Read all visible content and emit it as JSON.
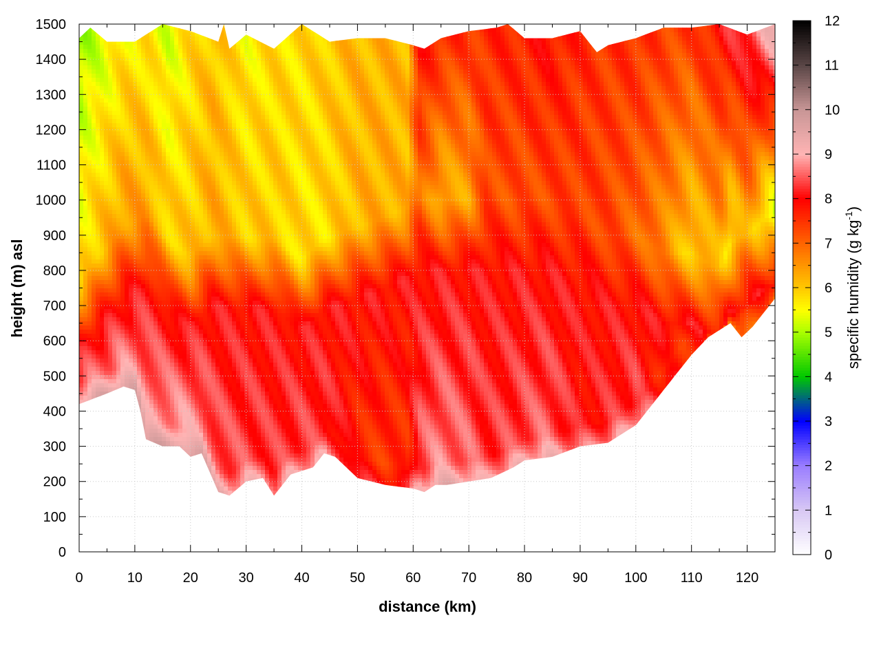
{
  "chart_data": {
    "type": "heatmap",
    "title": "",
    "xlabel": "distance (km)",
    "ylabel": "height (m) asl",
    "colorbar_label": {
      "main": "specific humidity (g kg",
      "sup": "-1",
      "close": ")"
    },
    "xlim": [
      0,
      125
    ],
    "ylim": [
      0,
      1500
    ],
    "zlim": [
      0,
      12
    ],
    "xticks": [
      0,
      10,
      20,
      30,
      40,
      50,
      60,
      70,
      80,
      90,
      100,
      110,
      120
    ],
    "yticks": [
      0,
      100,
      200,
      300,
      400,
      500,
      600,
      700,
      800,
      900,
      1000,
      1100,
      1200,
      1300,
      1400,
      1500
    ],
    "cbticks": [
      0,
      1,
      2,
      3,
      4,
      5,
      6,
      7,
      8,
      9,
      10,
      11,
      12
    ],
    "grid": true,
    "colormap": [
      {
        "v": 0,
        "c": "#ffffff"
      },
      {
        "v": 1,
        "c": "#d8c8f4"
      },
      {
        "v": 2,
        "c": "#9a7dff"
      },
      {
        "v": 3,
        "c": "#0000ff"
      },
      {
        "v": 4,
        "c": "#00c800"
      },
      {
        "v": 5,
        "c": "#aaff00"
      },
      {
        "v": 5.5,
        "c": "#ffff00"
      },
      {
        "v": 6,
        "c": "#ffc800"
      },
      {
        "v": 7,
        "c": "#ff6400"
      },
      {
        "v": 8,
        "c": "#ff0000"
      },
      {
        "v": 9,
        "c": "#ffb4b4"
      },
      {
        "v": 10,
        "c": "#c89696"
      },
      {
        "v": 11,
        "c": "#5a4646"
      },
      {
        "v": 12,
        "c": "#000000"
      }
    ],
    "surface": {
      "x": [
        0,
        5,
        8,
        10,
        11,
        12,
        15,
        18,
        20,
        22,
        25,
        27,
        30,
        33,
        35,
        38,
        40,
        42,
        44,
        46,
        48,
        50,
        55,
        60,
        62,
        64,
        66,
        70,
        74,
        78,
        80,
        85,
        90,
        95,
        98,
        100,
        103,
        105,
        108,
        110,
        113,
        115,
        117,
        119,
        121,
        123,
        125
      ],
      "y": [
        420,
        450,
        470,
        460,
        400,
        320,
        300,
        300,
        270,
        280,
        170,
        160,
        200,
        210,
        160,
        220,
        230,
        240,
        280,
        270,
        240,
        210,
        190,
        180,
        170,
        190,
        190,
        200,
        210,
        240,
        260,
        270,
        300,
        310,
        340,
        360,
        420,
        460,
        520,
        560,
        610,
        630,
        650,
        610,
        640,
        680,
        720
      ]
    },
    "top": {
      "x": [
        0,
        2,
        5,
        10,
        15,
        20,
        25,
        26,
        27,
        30,
        35,
        40,
        45,
        50,
        55,
        60,
        62,
        65,
        70,
        75,
        77,
        80,
        85,
        90,
        93,
        95,
        100,
        105,
        110,
        115,
        120,
        125
      ],
      "y": [
        1460,
        1490,
        1450,
        1450,
        1500,
        1480,
        1450,
        1500,
        1430,
        1470,
        1430,
        1500,
        1450,
        1460,
        1460,
        1440,
        1430,
        1460,
        1480,
        1490,
        1500,
        1460,
        1460,
        1480,
        1420,
        1440,
        1460,
        1490,
        1490,
        1500,
        1470,
        1500
      ]
    },
    "field": {
      "zones": [
        {
          "x": 0,
          "m": 8.8,
          "l": 5.8,
          "s": 4.9,
          "b": 575
        },
        {
          "x": 8,
          "m": 9.0,
          "l": 6.5,
          "s": 5.6,
          "b": 720
        },
        {
          "x": 12,
          "m": 9.0,
          "l": 6.4,
          "s": 5.7,
          "b": 760
        },
        {
          "x": 16,
          "m": 9.0,
          "l": 6.0,
          "s": 5.3,
          "b": 680
        },
        {
          "x": 20,
          "m": 9.1,
          "l": 6.0,
          "s": 5.8,
          "b": 640
        },
        {
          "x": 24,
          "m": 8.6,
          "l": 6.3,
          "s": 6.1,
          "b": 700
        },
        {
          "x": 30,
          "m": 8.4,
          "l": 6.0,
          "s": 5.6,
          "b": 690
        },
        {
          "x": 35,
          "m": 8.3,
          "l": 6.0,
          "s": 5.8,
          "b": 690
        },
        {
          "x": 40,
          "m": 8.4,
          "l": 5.8,
          "s": 5.8,
          "b": 630
        },
        {
          "x": 44,
          "m": 8.3,
          "l": 5.8,
          "s": 6.0,
          "b": 690
        },
        {
          "x": 50,
          "m": 7.6,
          "l": 6.2,
          "s": 6.2,
          "b": 720
        },
        {
          "x": 55,
          "m": 7.4,
          "l": 6.3,
          "s": 6.2,
          "b": 750
        },
        {
          "x": 59,
          "m": 7.5,
          "l": 6.2,
          "s": 6.2,
          "b": 780
        },
        {
          "x": 61,
          "m": 8.5,
          "l": 7.0,
          "s": 7.9,
          "b": 800
        },
        {
          "x": 65,
          "m": 8.8,
          "l": 6.2,
          "s": 7.7,
          "b": 800
        },
        {
          "x": 70,
          "m": 8.6,
          "l": 6.4,
          "s": 7.5,
          "b": 800
        },
        {
          "x": 73,
          "m": 8.3,
          "l": 7.3,
          "s": 7.6,
          "b": 800
        },
        {
          "x": 78,
          "m": 8.4,
          "l": 7.2,
          "s": 7.7,
          "b": 800
        },
        {
          "x": 84,
          "m": 8.6,
          "l": 7.3,
          "s": 7.9,
          "b": 800
        },
        {
          "x": 90,
          "m": 8.0,
          "l": 7.4,
          "s": 7.6,
          "b": 750
        },
        {
          "x": 95,
          "m": 8.2,
          "l": 7.3,
          "s": 7.5,
          "b": 700
        },
        {
          "x": 100,
          "m": 8.4,
          "l": 7.0,
          "s": 7.6,
          "b": 700
        },
        {
          "x": 105,
          "m": 7.4,
          "l": 6.6,
          "s": 7.4,
          "b": 650
        },
        {
          "x": 110,
          "m": 7.0,
          "l": 5.9,
          "s": 7.4,
          "b": 650
        },
        {
          "x": 115,
          "m": 6.8,
          "l": 6.2,
          "s": 7.9,
          "b": 600
        },
        {
          "x": 117,
          "m": 5.8,
          "l": 5.6,
          "s": 8.2,
          "b": 680
        },
        {
          "x": 120,
          "m": 6.5,
          "l": 6.4,
          "s": 8.4,
          "b": 700
        },
        {
          "x": 123,
          "m": 6.5,
          "l": 5.5,
          "s": 9.0,
          "b": 750
        },
        {
          "x": 125,
          "m": 6.5,
          "l": 5.2,
          "s": 9.3,
          "b": 760
        }
      ]
    }
  }
}
